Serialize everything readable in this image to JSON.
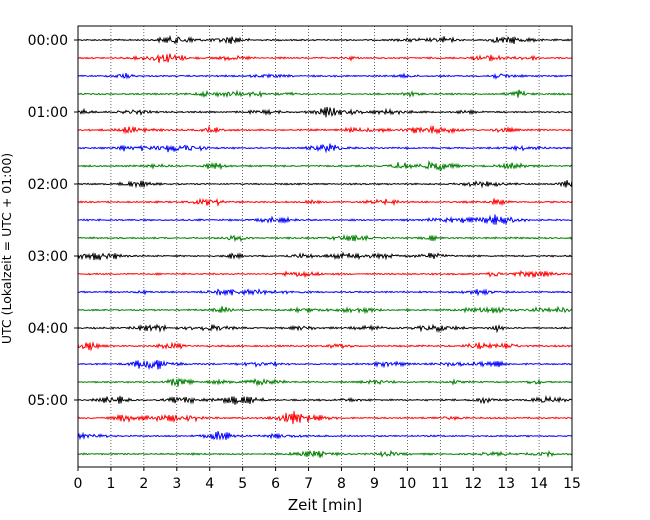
{
  "chart_data": {
    "type": "line",
    "title": "",
    "xlabel": "Zeit  [min]",
    "ylabel": "UTC (Lokalzeit = UTC + 01:00)",
    "xlim": [
      0,
      15
    ],
    "x_ticks": [
      "0",
      "1",
      "2",
      "3",
      "4",
      "5",
      "6",
      "7",
      "8",
      "9",
      "10",
      "11",
      "12",
      "13",
      "14",
      "15"
    ],
    "y_ticks": [
      "00:00",
      "01:00",
      "02:00",
      "03:00",
      "04:00",
      "05:00"
    ],
    "traces_per_hour": 4,
    "minutes_per_trace": 15,
    "trace_count": 24,
    "trace_colors": [
      "#000000",
      "#ff0000",
      "#0000ff",
      "#008000"
    ],
    "grid": "vertical dotted at each minute"
  }
}
